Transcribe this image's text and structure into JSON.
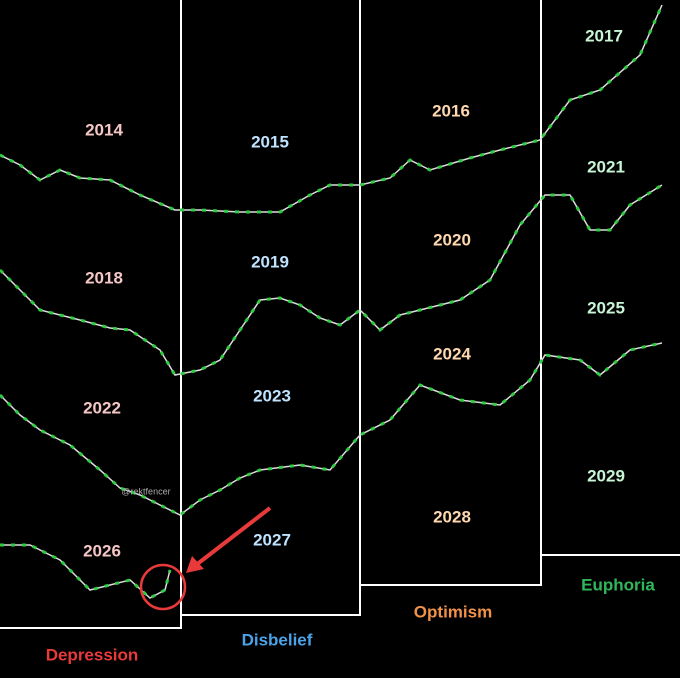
{
  "phases": [
    "Depression",
    "Disbelief",
    "Optimism",
    "Euphoria"
  ],
  "years": [
    [
      "2014",
      "2015",
      "2016",
      "2017"
    ],
    [
      "2018",
      "2019",
      "2020",
      "2021"
    ],
    [
      "2022",
      "2023",
      "2024",
      "2025"
    ],
    [
      "2026",
      "2027",
      "2028",
      "2029"
    ]
  ],
  "watermark": "@rektfencer"
}
